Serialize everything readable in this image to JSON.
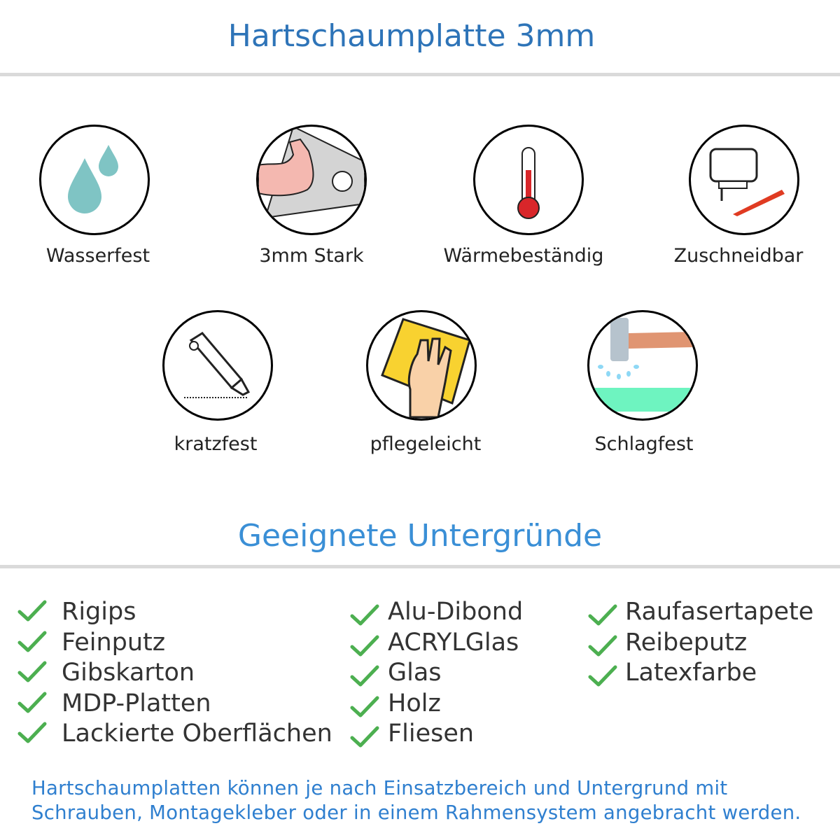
{
  "header": {
    "title": "Hartschaumplatte 3mm"
  },
  "features": [
    {
      "label": "Wasserfest",
      "icon": "water-drops-icon"
    },
    {
      "label": "3mm Stark",
      "icon": "flexed-arm-icon"
    },
    {
      "label": "Wärmebeständig",
      "icon": "thermometer-icon"
    },
    {
      "label": "Zuschneidbar",
      "icon": "jigsaw-knife-icon"
    },
    {
      "label": "kratzfest",
      "icon": "cutter-knife-icon"
    },
    {
      "label": "pflegeleicht",
      "icon": "hand-sponge-icon"
    },
    {
      "label": "Schlagfest",
      "icon": "hammer-icon"
    }
  ],
  "surfaces": {
    "title": "Geeignete Untergründe",
    "col1": [
      "Rigips",
      "Feinputz",
      "Gibskarton",
      "MDP-Platten",
      "Lackierte Oberflächen"
    ],
    "col2": [
      "Alu-Dibond",
      "ACRYLGlas",
      "Glas",
      "Holz",
      "Fliesen"
    ],
    "col3": [
      "Raufasertapete",
      "Reibeputz",
      "Latexfarbe"
    ]
  },
  "footer": {
    "line1": "Hartschaumplatten können je nach Einsatzbereich und Untergrund mit",
    "line2": "Schrauben, Montagekleber oder in einem Rahmensystem angebracht werden."
  },
  "colors": {
    "title": "#2e74b8",
    "heading": "#3a8fd6",
    "check": "#4caf50",
    "footer": "#2f7fcf"
  }
}
